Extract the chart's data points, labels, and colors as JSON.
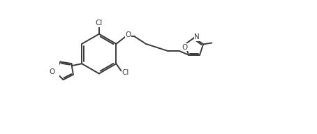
{
  "bg_color": "#ffffff",
  "line_color": "#3a3a3a",
  "line_width": 1.4,
  "text_color": "#3a3a3a",
  "font_size": 7.5,
  "xlim": [
    0,
    15
  ],
  "ylim": [
    0,
    10
  ]
}
